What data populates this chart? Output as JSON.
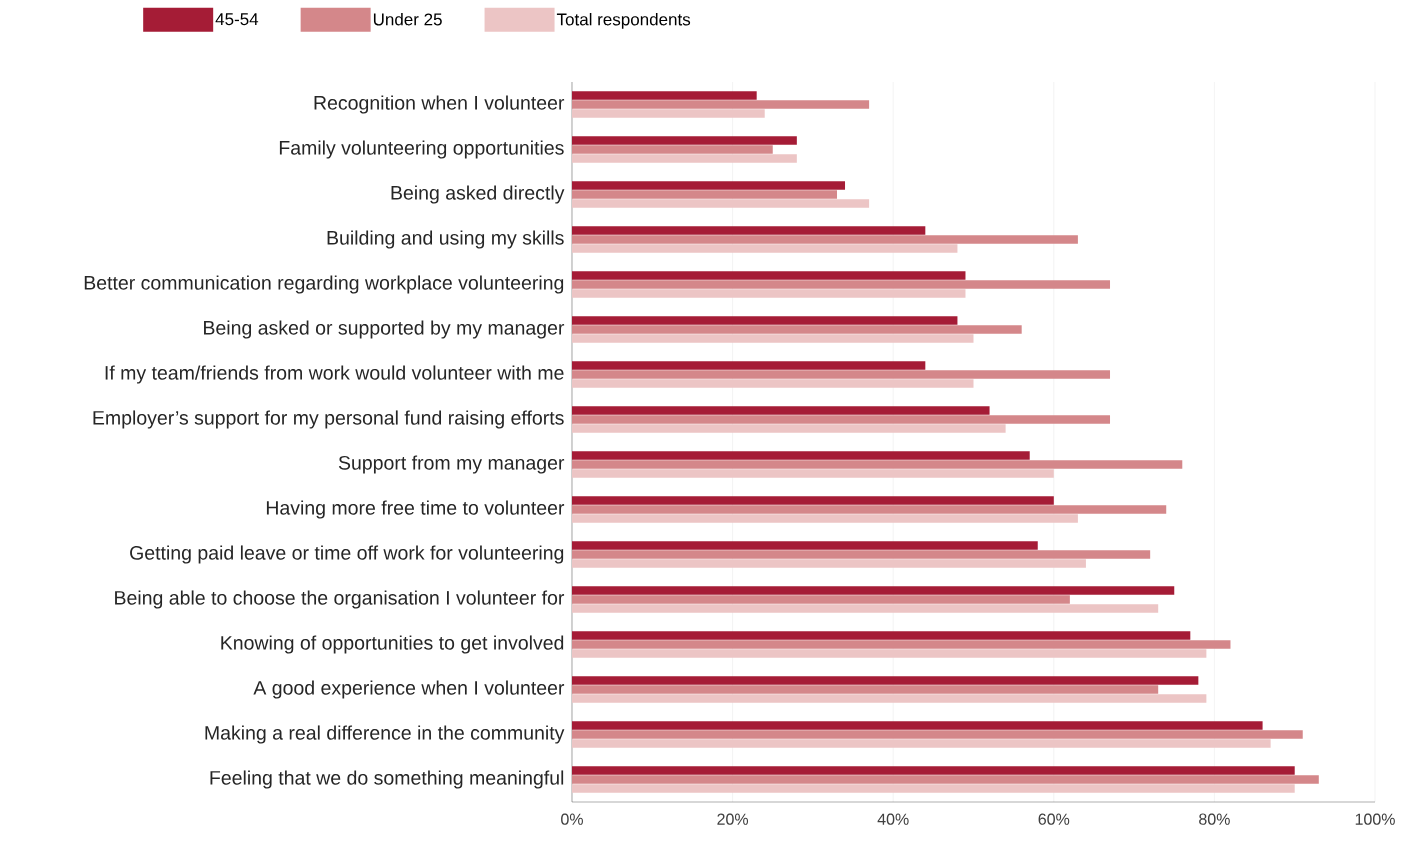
{
  "chart_data": {
    "type": "bar",
    "orientation": "horizontal",
    "categories": [
      "Recognition when I volunteer",
      "Family volunteering opportunities",
      "Being asked directly",
      "Building and using my skills",
      "Better communication regarding workplace volunteering",
      "Being asked or supported by my manager",
      "If my team/friends from work would volunteer with me",
      "Employer’s support for my personal fund raising efforts",
      "Support from my manager",
      "Having more free time to volunteer",
      "Getting paid leave or time off work for volunteering",
      "Being able to choose the organisation I volunteer for",
      "Knowing of opportunities to get involved",
      "A good experience when I volunteer",
      "Making a real difference in the community",
      "Feeling that we do something meaningful"
    ],
    "series": [
      {
        "name": "45-54",
        "color": "#a51c36",
        "values": [
          23,
          28,
          34,
          44,
          49,
          48,
          44,
          52,
          57,
          60,
          58,
          75,
          77,
          78,
          86,
          90
        ]
      },
      {
        "name": "Under 25",
        "color": "#d4878a",
        "values": [
          37,
          25,
          33,
          63,
          67,
          56,
          67,
          67,
          76,
          74,
          72,
          62,
          82,
          73,
          91,
          93
        ]
      },
      {
        "name": "Total respondents",
        "color": "#ecc5c5",
        "values": [
          24,
          28,
          37,
          48,
          49,
          50,
          50,
          54,
          60,
          63,
          64,
          73,
          79,
          79,
          87,
          90
        ]
      }
    ],
    "xlim": [
      0,
      100
    ],
    "xticks": [
      {
        "value": 0,
        "label": "0%"
      },
      {
        "value": 20,
        "label": "20%"
      },
      {
        "value": 40,
        "label": "40%"
      },
      {
        "value": 60,
        "label": "60%"
      },
      {
        "value": 80,
        "label": "80%"
      },
      {
        "value": 100,
        "label": "100%"
      }
    ],
    "grid": "x",
    "legend": "top"
  }
}
